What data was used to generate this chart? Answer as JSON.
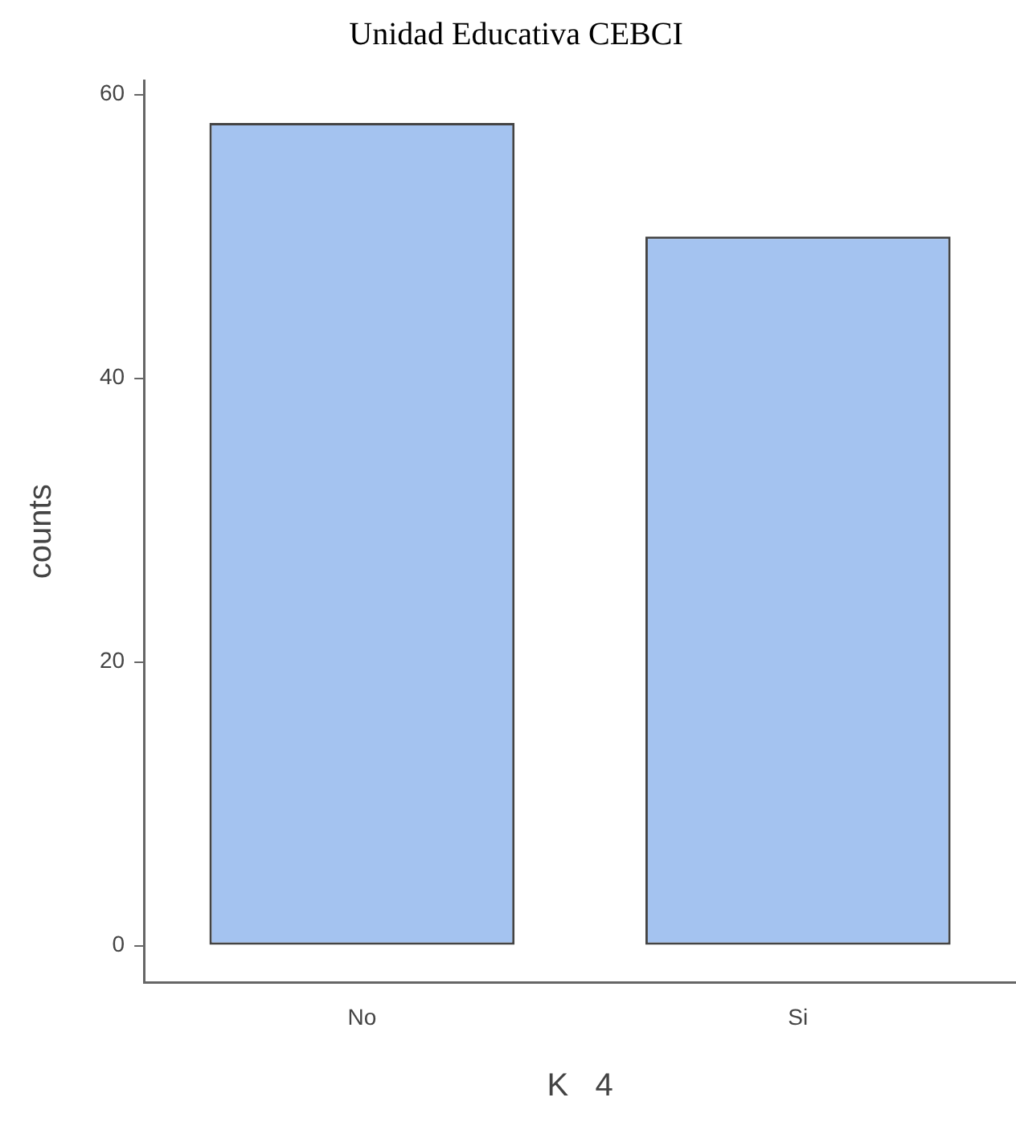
{
  "chart_data": {
    "type": "bar",
    "title": "Unidad Educativa CEBCI",
    "xlabel": "K   4",
    "ylabel": "counts",
    "categories": [
      "No",
      "Si"
    ],
    "values": [
      58,
      50
    ],
    "color": "#a4c3f0",
    "ylim": [
      -2.6,
      61
    ],
    "yticks": [
      0,
      20,
      40,
      60
    ],
    "grid": false,
    "legend": false
  }
}
